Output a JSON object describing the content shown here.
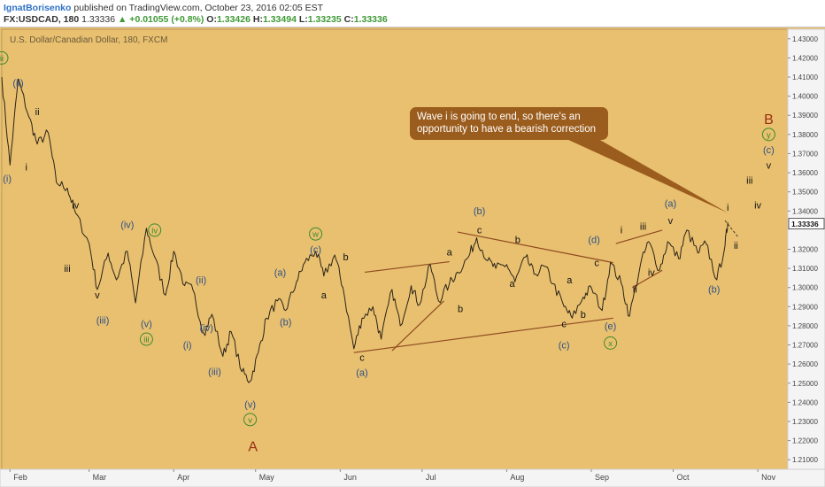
{
  "header": {
    "author": "IgnatBorisenko",
    "published_text": "published on TradingView.com, October 23, 2016 02:05 EST",
    "symbol": "FX:USDCAD, 180",
    "last": "1.33336",
    "change": "▲ +0.01055 (+0.8%)",
    "o_label": "O:",
    "o_value": "1.33426",
    "h_label": "H:",
    "h_value": "1.33494",
    "l_label": "L:",
    "l_value": "1.33235",
    "c_label": "C:",
    "c_value": "1.33336"
  },
  "chart_title": "U.S. Dollar/Canadian Dollar, 180, FXCM",
  "annotation": "Wave i is going to end, so there's an opportunity to have a bearish correction",
  "colors": {
    "background": "#e8c070",
    "price_line": "#2b2317",
    "wave_blue": "#2c4f86",
    "wave_black": "#111111",
    "wave_green": "#3f8a2c",
    "wave_red": "#9b2d12",
    "trendline": "#8f4a1f",
    "callout": "#9b5d1d"
  },
  "chart_data": {
    "type": "line",
    "title": "U.S. Dollar/Canadian Dollar, 180, FXCM",
    "x_tick_labels": [
      "Feb",
      "Mar",
      "Apr",
      "May",
      "Jun",
      "Jul",
      "Aug",
      "Sep",
      "Oct",
      "Nov"
    ],
    "y_tick_labels": [
      "1.43000",
      "1.42000",
      "1.41000",
      "1.40000",
      "1.39000",
      "1.38000",
      "1.37000",
      "1.36000",
      "1.35000",
      "1.34000",
      "1.32000",
      "1.31000",
      "1.30000",
      "1.29000",
      "1.28000",
      "1.27000",
      "1.26000",
      "1.25000",
      "1.24000",
      "1.23000",
      "1.22000",
      "1.21000"
    ],
    "ylim": [
      1.205,
      1.435
    ],
    "last_price_label": "1.33336",
    "price_approx": {
      "x": [
        "2016-01-29",
        "2016-02-01",
        "2016-02-04",
        "2016-02-08",
        "2016-02-11",
        "2016-02-15",
        "2016-02-18",
        "2016-02-22",
        "2016-02-25",
        "2016-03-01",
        "2016-03-04",
        "2016-03-08",
        "2016-03-11",
        "2016-03-15",
        "2016-03-18",
        "2016-03-22",
        "2016-03-25",
        "2016-03-29",
        "2016-04-01",
        "2016-04-05",
        "2016-04-08",
        "2016-04-12",
        "2016-04-15",
        "2016-04-19",
        "2016-04-22",
        "2016-04-26",
        "2016-04-29",
        "2016-05-02",
        "2016-05-05",
        "2016-05-09",
        "2016-05-12",
        "2016-05-16",
        "2016-05-19",
        "2016-05-23",
        "2016-05-26",
        "2016-05-30",
        "2016-06-02",
        "2016-06-06",
        "2016-06-09",
        "2016-06-13",
        "2016-06-16",
        "2016-06-20",
        "2016-06-23",
        "2016-06-27",
        "2016-06-30",
        "2016-07-04",
        "2016-07-07",
        "2016-07-11",
        "2016-07-14",
        "2016-07-18",
        "2016-07-21",
        "2016-07-25",
        "2016-07-28",
        "2016-08-01",
        "2016-08-04",
        "2016-08-08",
        "2016-08-11",
        "2016-08-15",
        "2016-08-18",
        "2016-08-22",
        "2016-08-25",
        "2016-08-29",
        "2016-09-01",
        "2016-09-05",
        "2016-09-08",
        "2016-09-12",
        "2016-09-15",
        "2016-09-19",
        "2016-09-22",
        "2016-09-26",
        "2016-09-29",
        "2016-10-03",
        "2016-10-06",
        "2016-10-10",
        "2016-10-13",
        "2016-10-17",
        "2016-10-20",
        "2016-10-21"
      ],
      "y": [
        1.41,
        1.364,
        1.409,
        1.389,
        1.375,
        1.381,
        1.355,
        1.352,
        1.339,
        1.323,
        1.299,
        1.318,
        1.304,
        1.319,
        1.292,
        1.331,
        1.316,
        1.296,
        1.319,
        1.301,
        1.299,
        1.276,
        1.286,
        1.264,
        1.277,
        1.256,
        1.251,
        1.266,
        1.284,
        1.293,
        1.288,
        1.303,
        1.313,
        1.319,
        1.306,
        1.317,
        1.3,
        1.268,
        1.284,
        1.29,
        1.273,
        1.299,
        1.28,
        1.301,
        1.291,
        1.312,
        1.293,
        1.302,
        1.308,
        1.316,
        1.326,
        1.314,
        1.31,
        1.312,
        1.303,
        1.316,
        1.307,
        1.311,
        1.302,
        1.29,
        1.284,
        1.295,
        1.3,
        1.288,
        1.313,
        1.302,
        1.285,
        1.312,
        1.324,
        1.309,
        1.324,
        1.315,
        1.33,
        1.318,
        1.323,
        1.304,
        1.322,
        1.334
      ]
    }
  },
  "wave_labels": [
    {
      "text": "ii",
      "date": "2016-01-29",
      "price": 1.42,
      "style": "circle-green"
    },
    {
      "text": "(ii)",
      "date": "2016-02-04",
      "price": 1.407,
      "style": "blue"
    },
    {
      "text": "ii",
      "date": "2016-02-11",
      "price": 1.392,
      "style": "black"
    },
    {
      "text": "(i)",
      "date": "2016-01-31",
      "price": 1.357,
      "style": "blue"
    },
    {
      "text": "i",
      "date": "2016-02-07",
      "price": 1.363,
      "style": "black"
    },
    {
      "text": "iv",
      "date": "2016-02-25",
      "price": 1.343,
      "style": "black"
    },
    {
      "text": "iii",
      "date": "2016-02-22",
      "price": 1.31,
      "style": "black"
    },
    {
      "text": "(iv)",
      "date": "2016-03-15",
      "price": 1.333,
      "style": "blue"
    },
    {
      "text": "iv",
      "date": "2016-03-25",
      "price": 1.33,
      "style": "circle-green"
    },
    {
      "text": "v",
      "date": "2016-03-04",
      "price": 1.296,
      "style": "black"
    },
    {
      "text": "(iii)",
      "date": "2016-03-06",
      "price": 1.283,
      "style": "blue"
    },
    {
      "text": "(v)",
      "date": "2016-03-22",
      "price": 1.281,
      "style": "blue"
    },
    {
      "text": "iii",
      "date": "2016-03-22",
      "price": 1.273,
      "style": "circle-green"
    },
    {
      "text": "(ii)",
      "date": "2016-04-11",
      "price": 1.304,
      "style": "blue"
    },
    {
      "text": "(i)",
      "date": "2016-04-06",
      "price": 1.27,
      "style": "blue"
    },
    {
      "text": "(iv)",
      "date": "2016-04-13",
      "price": 1.279,
      "style": "blue"
    },
    {
      "text": "(iii)",
      "date": "2016-04-16",
      "price": 1.256,
      "style": "blue"
    },
    {
      "text": "(v)",
      "date": "2016-04-29",
      "price": 1.239,
      "style": "blue"
    },
    {
      "text": "v",
      "date": "2016-04-29",
      "price": 1.231,
      "style": "circle-green"
    },
    {
      "text": "A",
      "date": "2016-04-30",
      "price": 1.217,
      "style": "red"
    },
    {
      "text": "w",
      "date": "2016-05-23",
      "price": 1.328,
      "style": "circle-green"
    },
    {
      "text": "(c)",
      "date": "2016-05-23",
      "price": 1.32,
      "style": "blue"
    },
    {
      "text": "b",
      "date": "2016-06-03",
      "price": 1.316,
      "style": "black"
    },
    {
      "text": "(a)",
      "date": "2016-05-10",
      "price": 1.308,
      "style": "blue"
    },
    {
      "text": "a",
      "date": "2016-05-26",
      "price": 1.296,
      "style": "black"
    },
    {
      "text": "(b)",
      "date": "2016-05-12",
      "price": 1.282,
      "style": "blue"
    },
    {
      "text": "c",
      "date": "2016-06-09",
      "price": 1.2635,
      "style": "black"
    },
    {
      "text": "(a)",
      "date": "2016-06-09",
      "price": 1.2555,
      "style": "blue"
    },
    {
      "text": "a",
      "date": "2016-07-11",
      "price": 1.3185,
      "style": "black"
    },
    {
      "text": "b",
      "date": "2016-07-15",
      "price": 1.289,
      "style": "black"
    },
    {
      "text": "(b)",
      "date": "2016-07-22",
      "price": 1.34,
      "style": "blue"
    },
    {
      "text": "c",
      "date": "2016-07-22",
      "price": 1.33,
      "style": "black"
    },
    {
      "text": "b",
      "date": "2016-08-05",
      "price": 1.325,
      "style": "black"
    },
    {
      "text": "a",
      "date": "2016-08-03",
      "price": 1.302,
      "style": "black"
    },
    {
      "text": "a",
      "date": "2016-08-24",
      "price": 1.304,
      "style": "black"
    },
    {
      "text": "c",
      "date": "2016-08-22",
      "price": 1.281,
      "style": "black"
    },
    {
      "text": "b",
      "date": "2016-08-29",
      "price": 1.286,
      "style": "black"
    },
    {
      "text": "(c)",
      "date": "2016-08-22",
      "price": 1.27,
      "style": "blue"
    },
    {
      "text": "(d)",
      "date": "2016-09-02",
      "price": 1.325,
      "style": "blue"
    },
    {
      "text": "c",
      "date": "2016-09-03",
      "price": 1.313,
      "style": "black"
    },
    {
      "text": "(e)",
      "date": "2016-09-08",
      "price": 1.28,
      "style": "blue"
    },
    {
      "text": "x",
      "date": "2016-09-08",
      "price": 1.271,
      "style": "circle-green"
    },
    {
      "text": "i",
      "date": "2016-09-12",
      "price": 1.33,
      "style": "black"
    },
    {
      "text": "iii",
      "date": "2016-09-20",
      "price": 1.332,
      "style": "black"
    },
    {
      "text": "ii",
      "date": "2016-09-17",
      "price": 1.299,
      "style": "black"
    },
    {
      "text": "iv",
      "date": "2016-09-23",
      "price": 1.308,
      "style": "black"
    },
    {
      "text": "(a)",
      "date": "2016-09-30",
      "price": 1.344,
      "style": "blue"
    },
    {
      "text": "v",
      "date": "2016-09-30",
      "price": 1.335,
      "style": "black"
    },
    {
      "text": "(b)",
      "date": "2016-10-16",
      "price": 1.299,
      "style": "blue"
    },
    {
      "text": "i",
      "date": "2016-10-21",
      "price": 1.342,
      "style": "black"
    },
    {
      "text": "ii",
      "date": "2016-10-24",
      "price": 1.322,
      "style": "black"
    },
    {
      "text": "iii",
      "date": "2016-10-29",
      "price": 1.356,
      "style": "black"
    },
    {
      "text": "iv",
      "date": "2016-11-01",
      "price": 1.343,
      "style": "black"
    },
    {
      "text": "v",
      "date": "2016-11-05",
      "price": 1.364,
      "style": "black"
    },
    {
      "text": "(c)",
      "date": "2016-11-05",
      "price": 1.372,
      "style": "blue"
    },
    {
      "text": "y",
      "date": "2016-11-05",
      "price": 1.38,
      "style": "circle-green"
    },
    {
      "text": "B",
      "date": "2016-11-05",
      "price": 1.388,
      "style": "red"
    }
  ],
  "trendlines": [
    {
      "from": {
        "date": "2016-06-06",
        "price": 1.266
      },
      "to": {
        "date": "2016-09-09",
        "price": 1.284
      }
    },
    {
      "from": {
        "date": "2016-06-20",
        "price": 1.267
      },
      "to": {
        "date": "2016-07-09",
        "price": 1.293
      }
    },
    {
      "from": {
        "date": "2016-06-10",
        "price": 1.308
      },
      "to": {
        "date": "2016-07-11",
        "price": 1.3135
      }
    },
    {
      "from": {
        "date": "2016-07-14",
        "price": 1.329
      },
      "to": {
        "date": "2016-09-09",
        "price": 1.313
      }
    },
    {
      "from": {
        "date": "2016-09-10",
        "price": 1.323
      },
      "to": {
        "date": "2016-09-27",
        "price": 1.33
      }
    },
    {
      "from": {
        "date": "2016-09-16",
        "price": 1.3
      },
      "to": {
        "date": "2016-09-27",
        "price": 1.309
      }
    }
  ],
  "projection": {
    "from": {
      "date": "2016-10-20",
      "price": 1.335
    },
    "to": {
      "date": "2016-10-25",
      "price": 1.326
    }
  },
  "callout_tip": {
    "date": "2016-10-21",
    "price": 1.339
  }
}
